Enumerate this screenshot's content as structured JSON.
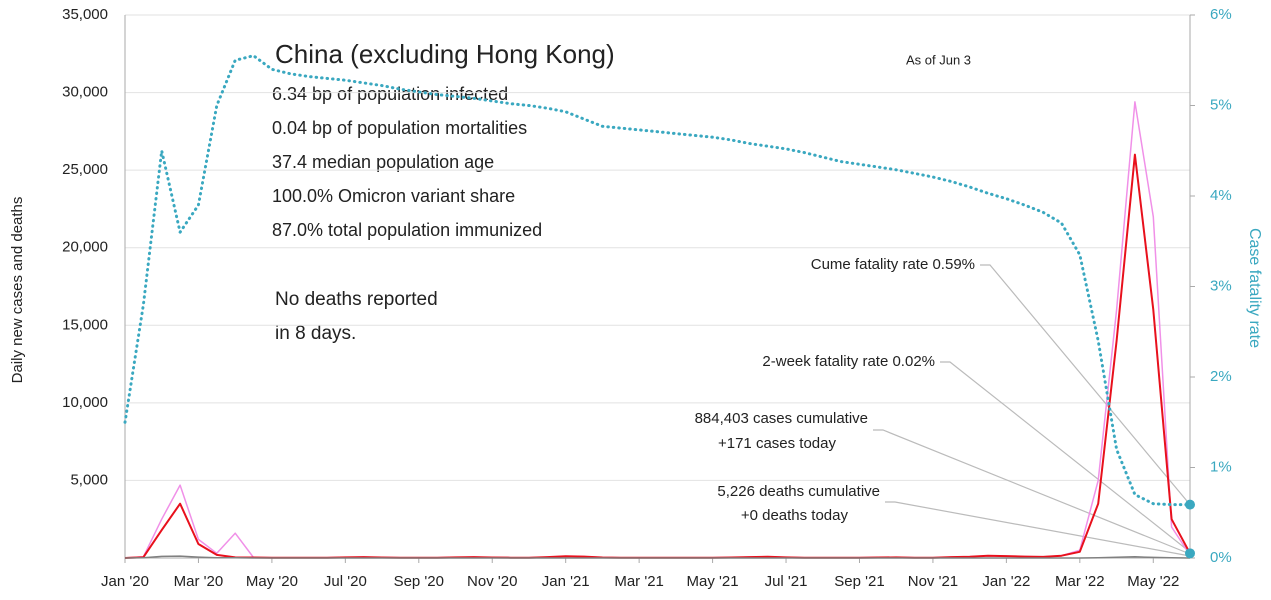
{
  "chart_data": {
    "type": "line",
    "title": "China (excluding Hong Kong)",
    "stats": [
      "6.34 bp of population infected",
      "0.04 bp of population mortalities",
      "37.4 median population age",
      "100.0% Omicron variant share",
      "87.0% total population immunized"
    ],
    "note": [
      "No deaths reported",
      "in 8 days."
    ],
    "as_of": "As of Jun 3",
    "annotations": [
      "Cume fatality rate 0.59%",
      "2-week fatality rate 0.02%",
      "884,403 cases cumulative",
      "+171 cases today",
      "5,226 deaths cumulative",
      "+0 deaths today"
    ],
    "y_label": "Daily new cases and deaths",
    "y2_label": "Case fatality rate",
    "categories": [
      "Jan '20",
      null,
      null,
      null,
      "Mar '20",
      null,
      null,
      null,
      "May '20",
      null,
      null,
      null,
      "Jul '20",
      null,
      null,
      null,
      "Sep '20",
      null,
      null,
      null,
      "Nov '20",
      null,
      null,
      null,
      "Jan '21",
      null,
      null,
      null,
      "Mar '21",
      null,
      null,
      null,
      "May '21",
      null,
      null,
      null,
      "Jul '21",
      null,
      null,
      null,
      "Sep '21",
      null,
      null,
      null,
      "Nov '21",
      null,
      null,
      null,
      "Jan '22",
      null,
      null,
      null,
      "Mar '22",
      null,
      null,
      null,
      "May '22",
      null,
      null
    ],
    "series": [
      {
        "color": "#f090e8",
        "values": [
          0,
          80,
          2500,
          4700,
          1200,
          300,
          1600,
          30,
          20,
          10,
          10,
          20,
          40,
          60,
          30,
          20,
          10,
          10,
          40,
          60,
          30,
          20,
          20,
          60,
          110,
          90,
          30,
          20,
          10,
          10,
          10,
          10,
          20,
          30,
          60,
          80,
          40,
          20,
          10,
          10,
          20,
          30,
          40,
          20,
          10,
          60,
          80,
          150,
          120,
          90,
          70,
          150,
          500,
          5000,
          16000,
          29400,
          22000,
          2000,
          200
        ]
      },
      {
        "color": "#e8101c",
        "values": [
          0,
          50,
          1800,
          3500,
          900,
          200,
          40,
          30,
          20,
          10,
          10,
          20,
          40,
          60,
          30,
          20,
          10,
          10,
          40,
          60,
          30,
          20,
          20,
          60,
          110,
          90,
          30,
          20,
          10,
          10,
          10,
          10,
          20,
          30,
          60,
          80,
          40,
          20,
          10,
          10,
          20,
          30,
          40,
          20,
          10,
          60,
          80,
          150,
          120,
          90,
          70,
          150,
          400,
          3500,
          14000,
          26000,
          16000,
          2500,
          300
        ]
      },
      {
        "color": "#808080",
        "values": [
          0,
          20,
          100,
          120,
          60,
          20,
          10,
          0,
          0,
          0,
          0,
          0,
          0,
          0,
          0,
          0,
          0,
          0,
          0,
          0,
          0,
          0,
          0,
          0,
          0,
          0,
          0,
          0,
          0,
          0,
          0,
          0,
          0,
          0,
          0,
          0,
          0,
          0,
          0,
          0,
          0,
          0,
          0,
          0,
          0,
          0,
          0,
          0,
          0,
          0,
          0,
          0,
          0,
          10,
          50,
          80,
          40,
          10,
          0
        ]
      },
      {
        "color": "#3aa8c0",
        "axis": "y2",
        "dotted": true,
        "values": [
          1.5,
          2.8,
          4.5,
          3.6,
          3.9,
          5.0,
          5.5,
          5.55,
          5.4,
          5.35,
          5.32,
          5.3,
          5.28,
          5.25,
          5.22,
          5.18,
          5.15,
          5.12,
          5.1,
          5.08,
          5.05,
          5.02,
          5.0,
          4.97,
          4.93,
          4.85,
          4.77,
          4.75,
          4.73,
          4.71,
          4.69,
          4.67,
          4.65,
          4.62,
          4.58,
          4.55,
          4.52,
          4.48,
          4.43,
          4.38,
          4.35,
          4.32,
          4.29,
          4.25,
          4.21,
          4.16,
          4.1,
          4.03,
          3.97,
          3.9,
          3.82,
          3.7,
          3.35,
          2.4,
          1.2,
          0.7,
          0.6,
          0.59,
          0.59
        ]
      }
    ],
    "ylim": [
      0,
      35000
    ],
    "yticks": [
      {
        "value": 5000,
        "label": "5,000"
      },
      {
        "value": 10000,
        "label": "10,000"
      },
      {
        "value": 15000,
        "label": "15,000"
      },
      {
        "value": 20000,
        "label": "20,000"
      },
      {
        "value": 25000,
        "label": "25,000"
      },
      {
        "value": 30000,
        "label": "30,000"
      },
      {
        "value": 35000,
        "label": "35,000"
      }
    ],
    "y2lim": [
      0,
      6
    ],
    "y2ticks": [
      {
        "value": 0,
        "label": "0%"
      },
      {
        "value": 1,
        "label": "1%"
      },
      {
        "value": 2,
        "label": "2%"
      },
      {
        "value": 3,
        "label": "3%"
      },
      {
        "value": 4,
        "label": "4%"
      },
      {
        "value": 5,
        "label": "5%"
      },
      {
        "value": 6,
        "label": "6%"
      }
    ],
    "grid": true
  }
}
